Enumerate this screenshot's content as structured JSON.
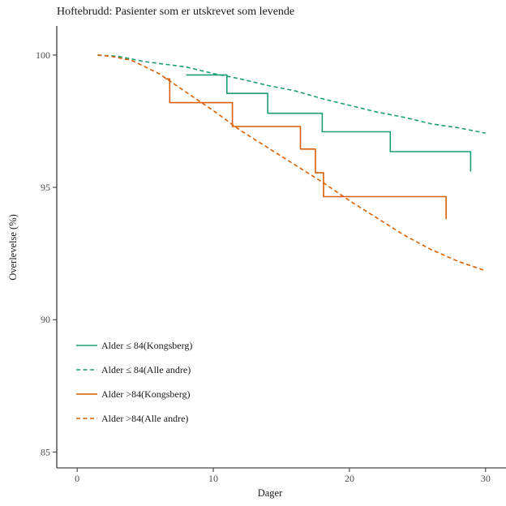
{
  "chart_data": {
    "type": "line",
    "title": "Hoftebrudd: Pasienter som er utskrevet som levende",
    "xlabel": "Dager",
    "ylabel": "Overlevelse (%)",
    "xlim": [
      -1.5,
      31.5
    ],
    "ylim": [
      84.4,
      101.1
    ],
    "xticks": [
      0,
      10,
      20,
      30
    ],
    "yticks": [
      85,
      90,
      95,
      100
    ],
    "grid": false,
    "legend_position": "bottom-left",
    "series": [
      {
        "name": "Alder ≤ 84(Kongsberg)",
        "color": "#1b9e77",
        "style": "solid",
        "step": true,
        "x": [
          8,
          11,
          14,
          18,
          23,
          28.9
        ],
        "y": [
          99.25,
          98.55,
          97.8,
          97.1,
          96.35,
          95.6
        ]
      },
      {
        "name": "Alder ≤ 84(Alle andre)",
        "color": "#1b9e77",
        "style": "dashed",
        "step": false,
        "x": [
          1.5,
          3,
          5,
          8,
          10,
          12,
          14,
          16,
          18,
          20,
          22,
          24,
          26,
          28,
          30
        ],
        "y": [
          100,
          99.95,
          99.75,
          99.55,
          99.3,
          99.1,
          98.85,
          98.65,
          98.35,
          98.1,
          97.85,
          97.65,
          97.4,
          97.25,
          97.05
        ]
      },
      {
        "name": "Alder >84(Kongsberg)",
        "color": "#d95f02",
        "style": "solid",
        "step": true,
        "x": [
          6.5,
          6.8,
          11.4,
          16.4,
          17.5,
          18.1,
          27.1
        ],
        "y": [
          99.1,
          98.2,
          97.3,
          96.45,
          95.55,
          94.65,
          93.8
        ]
      },
      {
        "name": "Alder >84(Alle andre)",
        "color": "#d95f02",
        "style": "dashed",
        "step": false,
        "x": [
          1.5,
          2.5,
          4,
          6,
          8,
          10,
          12,
          14,
          16,
          18,
          20,
          22,
          24,
          26,
          28,
          30
        ],
        "y": [
          100,
          99.95,
          99.8,
          99.3,
          98.6,
          97.9,
          97.15,
          96.5,
          95.85,
          95.2,
          94.5,
          93.85,
          93.2,
          92.65,
          92.2,
          91.85
        ]
      }
    ]
  }
}
